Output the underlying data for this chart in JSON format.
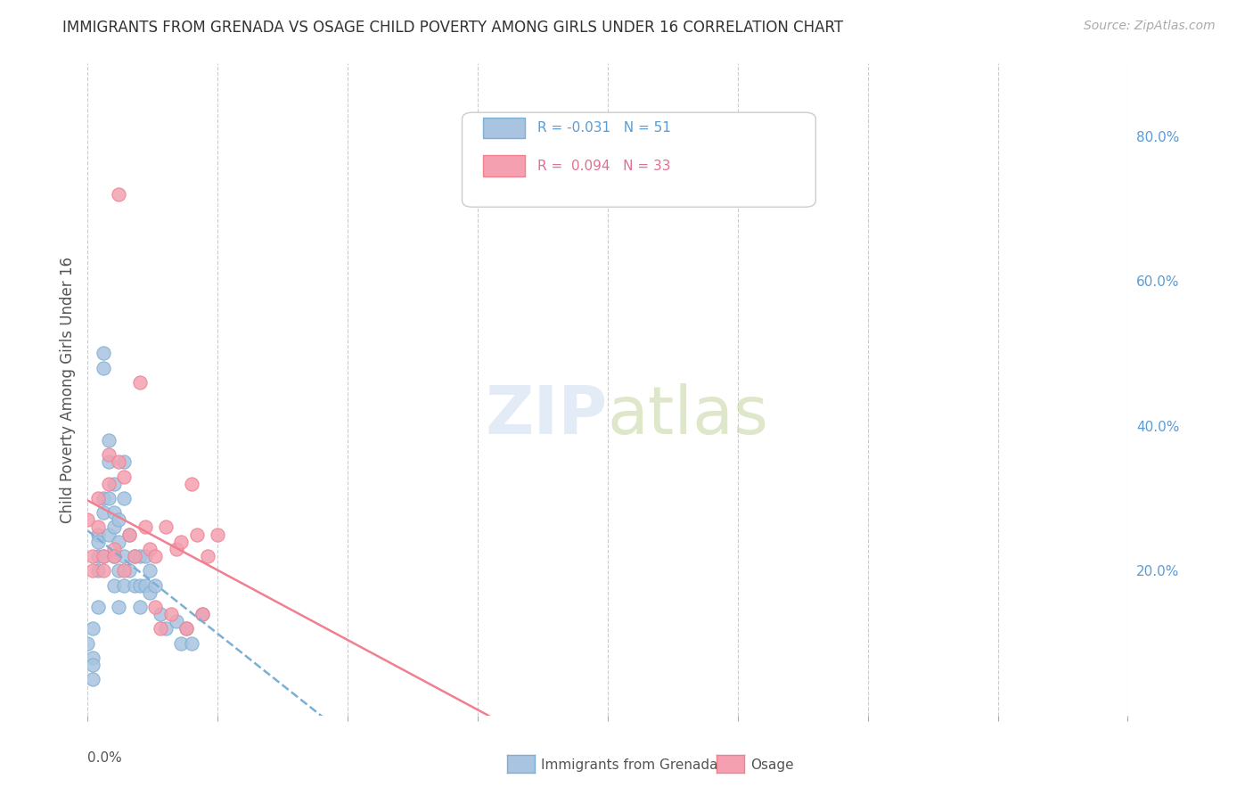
{
  "title": "IMMIGRANTS FROM GRENADA VS OSAGE CHILD POVERTY AMONG GIRLS UNDER 16 CORRELATION CHART",
  "source": "Source: ZipAtlas.com",
  "ylabel": "Child Poverty Among Girls Under 16",
  "right_yticks": [
    "80.0%",
    "60.0%",
    "40.0%",
    "20.0%"
  ],
  "right_ytick_vals": [
    0.8,
    0.6,
    0.4,
    0.2
  ],
  "color_blue": "#a8c4e0",
  "color_pink": "#f4a0b0",
  "color_blue_line": "#7bafd4",
  "color_pink_line": "#f08090",
  "background": "#ffffff",
  "grenada_x": [
    0.0,
    0.001,
    0.001,
    0.001,
    0.001,
    0.002,
    0.002,
    0.002,
    0.002,
    0.002,
    0.003,
    0.003,
    0.003,
    0.003,
    0.003,
    0.004,
    0.004,
    0.004,
    0.004,
    0.005,
    0.005,
    0.005,
    0.005,
    0.005,
    0.006,
    0.006,
    0.006,
    0.006,
    0.007,
    0.007,
    0.007,
    0.007,
    0.008,
    0.008,
    0.009,
    0.009,
    0.01,
    0.01,
    0.01,
    0.011,
    0.011,
    0.012,
    0.012,
    0.013,
    0.014,
    0.015,
    0.017,
    0.018,
    0.019,
    0.02,
    0.022
  ],
  "grenada_y": [
    0.1,
    0.12,
    0.08,
    0.07,
    0.05,
    0.25,
    0.24,
    0.22,
    0.2,
    0.15,
    0.5,
    0.48,
    0.3,
    0.28,
    0.22,
    0.38,
    0.35,
    0.3,
    0.25,
    0.32,
    0.28,
    0.26,
    0.22,
    0.18,
    0.27,
    0.24,
    0.2,
    0.15,
    0.35,
    0.3,
    0.22,
    0.18,
    0.25,
    0.2,
    0.22,
    0.18,
    0.22,
    0.18,
    0.15,
    0.22,
    0.18,
    0.2,
    0.17,
    0.18,
    0.14,
    0.12,
    0.13,
    0.1,
    0.12,
    0.1,
    0.14
  ],
  "osage_x": [
    0.0,
    0.001,
    0.001,
    0.002,
    0.002,
    0.003,
    0.003,
    0.004,
    0.004,
    0.005,
    0.005,
    0.006,
    0.006,
    0.007,
    0.007,
    0.008,
    0.009,
    0.01,
    0.011,
    0.012,
    0.013,
    0.013,
    0.014,
    0.015,
    0.016,
    0.017,
    0.018,
    0.019,
    0.02,
    0.021,
    0.022,
    0.023,
    0.025
  ],
  "osage_y": [
    0.27,
    0.22,
    0.2,
    0.3,
    0.26,
    0.22,
    0.2,
    0.36,
    0.32,
    0.23,
    0.22,
    0.72,
    0.35,
    0.33,
    0.2,
    0.25,
    0.22,
    0.46,
    0.26,
    0.23,
    0.22,
    0.15,
    0.12,
    0.26,
    0.14,
    0.23,
    0.24,
    0.12,
    0.32,
    0.25,
    0.14,
    0.22,
    0.25
  ],
  "xlim": [
    0.0,
    0.2
  ],
  "ylim": [
    0.0,
    0.9
  ]
}
